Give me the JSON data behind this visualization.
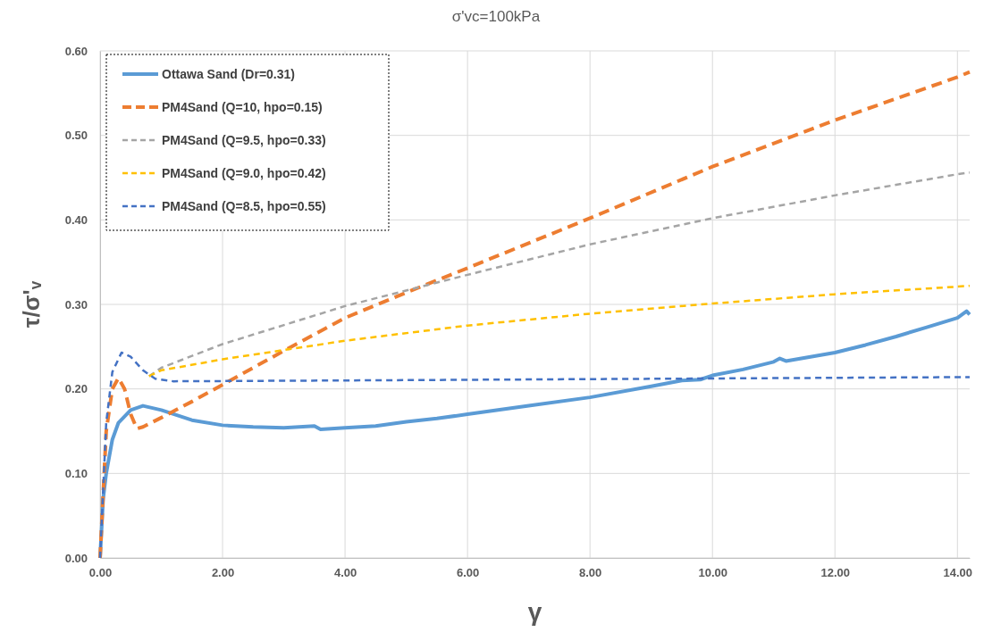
{
  "chart_data": {
    "type": "line",
    "title": "σ'vc=100kPa",
    "xlabel": "γ",
    "ylabel": "τ/σ'ᵥ",
    "xlim": [
      0,
      14.2
    ],
    "ylim": [
      0,
      0.6
    ],
    "xticks": [
      {
        "value": 0,
        "label": "0.00"
      },
      {
        "value": 2,
        "label": "2.00"
      },
      {
        "value": 4,
        "label": "4.00"
      },
      {
        "value": 6,
        "label": "6.00"
      },
      {
        "value": 8,
        "label": "8.00"
      },
      {
        "value": 10,
        "label": "10.00"
      },
      {
        "value": 12,
        "label": "12.00"
      },
      {
        "value": 14,
        "label": "14.00"
      }
    ],
    "yticks": [
      {
        "value": 0,
        "label": "0.00"
      },
      {
        "value": 0.1,
        "label": "0.10"
      },
      {
        "value": 0.2,
        "label": "0.20"
      },
      {
        "value": 0.3,
        "label": "0.30"
      },
      {
        "value": 0.4,
        "label": "0.40"
      },
      {
        "value": 0.5,
        "label": "0.50"
      },
      {
        "value": 0.6,
        "label": "0.60"
      }
    ],
    "grid": true,
    "legend": "top left",
    "marker": "none",
    "series": [
      {
        "name": "Ottawa Sand (Dr=0.31)",
        "color": "#5b9bd5",
        "line_style": "solid",
        "x": [
          0,
          0.05,
          0.1,
          0.2,
          0.3,
          0.5,
          0.7,
          1.0,
          1.5,
          2,
          2.5,
          3,
          3.5,
          3.6,
          4,
          4.5,
          5,
          5.5,
          6,
          7,
          8,
          9,
          9.5,
          9.8,
          10,
          10.5,
          11,
          11.1,
          11.2,
          12,
          12.5,
          13,
          13.5,
          14,
          14.15,
          14.2
        ],
        "values": [
          0,
          0.07,
          0.1,
          0.14,
          0.16,
          0.175,
          0.18,
          0.175,
          0.163,
          0.157,
          0.155,
          0.154,
          0.156,
          0.152,
          0.154,
          0.156,
          0.161,
          0.165,
          0.17,
          0.18,
          0.19,
          0.203,
          0.21,
          0.211,
          0.216,
          0.223,
          0.232,
          0.236,
          0.233,
          0.243,
          0.252,
          0.262,
          0.273,
          0.284,
          0.292,
          0.288
        ]
      },
      {
        "name": "PM4Sand (Q=10, hpo=0.15)",
        "color": "#ed7d31",
        "line_style": "dashed",
        "x": [
          0,
          0.1,
          0.2,
          0.3,
          0.4,
          0.5,
          0.6,
          0.7,
          1,
          1.5,
          2,
          3,
          4,
          5,
          6,
          8,
          10,
          12,
          14,
          14.2
        ],
        "values": [
          0,
          0.15,
          0.2,
          0.213,
          0.2,
          0.17,
          0.153,
          0.155,
          0.166,
          0.185,
          0.205,
          0.245,
          0.284,
          0.314,
          0.343,
          0.402,
          0.463,
          0.518,
          0.569,
          0.575
        ]
      },
      {
        "name": "PM4Sand (Q=9.5, hpo=0.33)",
        "color": "#a5a5a5",
        "line_style": "dashed",
        "x": [
          0.8,
          1,
          2,
          4,
          6,
          8,
          10,
          12,
          14,
          14.2
        ],
        "values": [
          0.215,
          0.225,
          0.253,
          0.298,
          0.335,
          0.371,
          0.402,
          0.429,
          0.454,
          0.456
        ]
      },
      {
        "name": "PM4Sand (Q=9.0, hpo=0.42)",
        "color": "#ffc000",
        "line_style": "dashed",
        "x": [
          0.8,
          1,
          2,
          4,
          6,
          8,
          10,
          12,
          14,
          14.2
        ],
        "values": [
          0.215,
          0.222,
          0.235,
          0.257,
          0.275,
          0.289,
          0.301,
          0.312,
          0.321,
          0.322
        ]
      },
      {
        "name": "PM4Sand (Q=8.5, hpo=0.55)",
        "color": "#4472c4",
        "line_style": "dashed",
        "x": [
          0,
          0.1,
          0.2,
          0.35,
          0.5,
          0.7,
          0.9,
          1.2,
          4,
          14.2
        ],
        "values": [
          0,
          0.16,
          0.22,
          0.243,
          0.238,
          0.222,
          0.212,
          0.209,
          0.21,
          0.214
        ]
      }
    ]
  }
}
